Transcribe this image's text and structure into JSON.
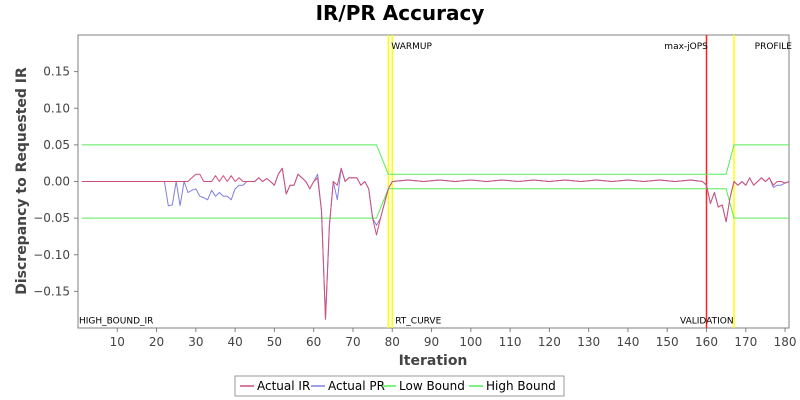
{
  "chart_data": {
    "type": "line",
    "title": "IR/PR Accuracy",
    "xlabel": "Iteration",
    "ylabel": "Discrepancy to Requested IR",
    "xlim": [
      0,
      181
    ],
    "ylim": [
      -0.2,
      0.2
    ],
    "x_ticks": [
      10,
      20,
      30,
      40,
      50,
      60,
      70,
      80,
      90,
      100,
      110,
      120,
      130,
      140,
      150,
      160,
      170,
      180
    ],
    "y_ticks": [
      -0.15,
      -0.1,
      -0.05,
      0.0,
      0.05,
      0.1,
      0.15
    ],
    "y_tick_labels": [
      "−0.15",
      "−0.10",
      "−0.05",
      "0.00",
      "0.05",
      "0.10",
      "0.15"
    ],
    "grid": false,
    "legend_position": "bottom",
    "series": [
      {
        "name": "Actual IR",
        "color": "#d0507a",
        "x": [
          1,
          21,
          22,
          23,
          24,
          25,
          26,
          27,
          28,
          29,
          30,
          31,
          32,
          33,
          34,
          35,
          36,
          37,
          38,
          39,
          40,
          41,
          42,
          43,
          44,
          45,
          46,
          47,
          48,
          49,
          50,
          51,
          52,
          53,
          54,
          55,
          56,
          57,
          58,
          59,
          60,
          61,
          62,
          63,
          64,
          65,
          66,
          67,
          68,
          69,
          70,
          71,
          72,
          73,
          74,
          75,
          76,
          77,
          78,
          79,
          80,
          84,
          88,
          92,
          96,
          100,
          104,
          108,
          112,
          116,
          120,
          124,
          128,
          132,
          136,
          140,
          144,
          148,
          152,
          156,
          159,
          160,
          161,
          162,
          163,
          164,
          165,
          166,
          167,
          168,
          169,
          170,
          171,
          172,
          173,
          174,
          175,
          176,
          177,
          178,
          179,
          180,
          181
        ],
        "values": [
          0,
          0,
          0,
          0,
          0,
          0,
          0,
          0,
          0,
          0.005,
          0.01,
          0.01,
          0,
          0,
          0,
          0.008,
          0,
          0.008,
          0,
          0.008,
          0,
          0.005,
          0,
          0,
          0,
          0,
          0.005,
          0,
          0.004,
          0,
          -0.005,
          0.01,
          0.018,
          -0.017,
          -0.005,
          -0.005,
          0.01,
          0.005,
          0,
          -0.01,
          0,
          0.005,
          -0.04,
          -0.188,
          -0.06,
          0,
          -0.005,
          0.018,
          0,
          0.005,
          0.005,
          0.005,
          -0.005,
          0,
          -0.01,
          -0.05,
          -0.073,
          -0.05,
          -0.03,
          -0.01,
          0,
          0.002,
          0,
          0.002,
          0,
          0.002,
          0,
          0.002,
          0,
          0.002,
          0,
          0.002,
          0,
          0.002,
          0,
          0.002,
          0,
          0.002,
          0,
          0.002,
          0,
          -0.005,
          -0.03,
          -0.015,
          -0.035,
          -0.032,
          -0.055,
          -0.022,
          0,
          -0.005,
          0,
          -0.005,
          0.005,
          -0.005,
          0,
          0.005,
          0,
          0.005,
          -0.005,
          0,
          0,
          -0.002,
          0
        ]
      },
      {
        "name": "Actual PR",
        "color": "#8080e0",
        "x": [
          1,
          21,
          22,
          23,
          24,
          25,
          26,
          27,
          28,
          29,
          30,
          31,
          32,
          33,
          34,
          35,
          36,
          37,
          38,
          39,
          40,
          41,
          42,
          43,
          44,
          45,
          46,
          47,
          48,
          49,
          50,
          51,
          52,
          53,
          54,
          55,
          56,
          57,
          58,
          59,
          60,
          61,
          62,
          63,
          64,
          65,
          66,
          67,
          68,
          69,
          70,
          71,
          72,
          73,
          74,
          75,
          76,
          77,
          78,
          79,
          80,
          84,
          88,
          92,
          96,
          100,
          104,
          108,
          112,
          116,
          120,
          124,
          128,
          132,
          136,
          140,
          144,
          148,
          152,
          156,
          159,
          160,
          161,
          162,
          163,
          164,
          165,
          166,
          167,
          168,
          169,
          170,
          171,
          172,
          173,
          174,
          175,
          176,
          177,
          178,
          179,
          180,
          181
        ],
        "values": [
          0,
          0,
          0,
          -0.033,
          -0.032,
          0,
          -0.033,
          0,
          -0.015,
          -0.012,
          -0.01,
          -0.02,
          -0.022,
          -0.025,
          -0.012,
          -0.02,
          -0.015,
          -0.02,
          -0.02,
          -0.025,
          -0.01,
          -0.005,
          -0.005,
          0,
          0,
          0,
          0.005,
          0,
          0.004,
          0,
          -0.005,
          0.01,
          0.018,
          -0.017,
          -0.005,
          -0.005,
          0.01,
          0.005,
          0,
          -0.01,
          0,
          0.01,
          -0.04,
          -0.188,
          -0.06,
          0,
          -0.025,
          0.018,
          0,
          0.005,
          0.005,
          0.005,
          -0.005,
          0,
          -0.01,
          -0.05,
          -0.06,
          -0.05,
          -0.03,
          -0.01,
          0,
          0.002,
          0,
          0.002,
          0,
          0.002,
          0,
          0.002,
          0,
          0.002,
          0,
          0.002,
          0,
          0.002,
          0,
          0.002,
          0,
          0.002,
          0,
          0.002,
          0,
          -0.005,
          -0.03,
          -0.015,
          -0.035,
          -0.032,
          -0.055,
          -0.022,
          0,
          -0.005,
          0,
          -0.005,
          0.005,
          -0.005,
          0,
          0.005,
          0,
          0.005,
          -0.008,
          -0.005,
          -0.005,
          -0.002,
          0
        ]
      },
      {
        "name": "Low Bound",
        "color": "#55ee55",
        "x": [
          1,
          76,
          79,
          165,
          167,
          181
        ],
        "values": [
          -0.05,
          -0.05,
          -0.01,
          -0.01,
          -0.05,
          -0.05
        ]
      },
      {
        "name": "High Bound",
        "color": "#55ee55",
        "x": [
          1,
          76,
          79,
          165,
          167,
          181
        ],
        "values": [
          0.05,
          0.05,
          0.01,
          0.01,
          0.05,
          0.05
        ]
      }
    ],
    "markers": [
      {
        "x": 79,
        "color": "#ffff00"
      },
      {
        "x": 80,
        "color": "#ffff00"
      },
      {
        "x": 160,
        "color": "#ff2020"
      },
      {
        "x": 167,
        "color": "#ffff00"
      }
    ],
    "annotations": [
      {
        "text": "HIGH_BOUND_IR",
        "x": 0,
        "y": -0.19
      },
      {
        "text": "WARMUP",
        "x": 79.5,
        "y": 0.185
      },
      {
        "text": "RT_CURVE",
        "x": 80.5,
        "y": -0.19
      },
      {
        "text": "max-jOPS",
        "x": 149,
        "y": 0.185
      },
      {
        "text": "VALIDATION",
        "x": 153,
        "y": -0.19
      },
      {
        "text": "PROFILE",
        "x": 172,
        "y": 0.185
      }
    ],
    "plot_background": "#ffffff",
    "axis_color": "#808080"
  }
}
